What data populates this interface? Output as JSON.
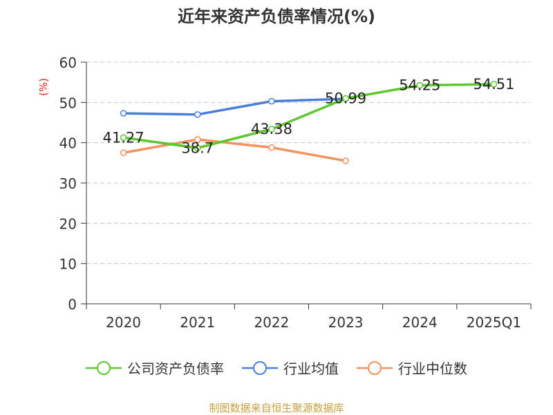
{
  "chart_data": {
    "type": "line",
    "title": "近年来资产负债率情况(%)",
    "ylabel": "(%)",
    "xlabel": "",
    "categories": [
      "2020",
      "2021",
      "2022",
      "2023",
      "2024",
      "2025Q1"
    ],
    "ylim": [
      0,
      60
    ],
    "yticks": [
      0,
      10,
      20,
      30,
      40,
      50,
      60
    ],
    "grid": true,
    "legend_position": "bottom",
    "series": [
      {
        "name": "公司资产负债率",
        "color": "#5cc72e",
        "values": [
          41.27,
          38.7,
          43.38,
          50.99,
          54.25,
          54.51
        ],
        "labels": [
          "41.27",
          "38.7",
          "43.38",
          "50.99",
          "54.25",
          "54.51"
        ],
        "show_labels": true
      },
      {
        "name": "行业均值",
        "color": "#4a7fd9",
        "values": [
          47.3,
          47.0,
          50.3,
          50.9,
          null,
          null
        ],
        "show_labels": false
      },
      {
        "name": "行业中位数",
        "color": "#f6915e",
        "values": [
          37.5,
          40.8,
          38.8,
          35.5,
          null,
          null
        ],
        "show_labels": false
      }
    ]
  },
  "footer": {
    "source": "制图数据来自恒生聚源数据库"
  }
}
